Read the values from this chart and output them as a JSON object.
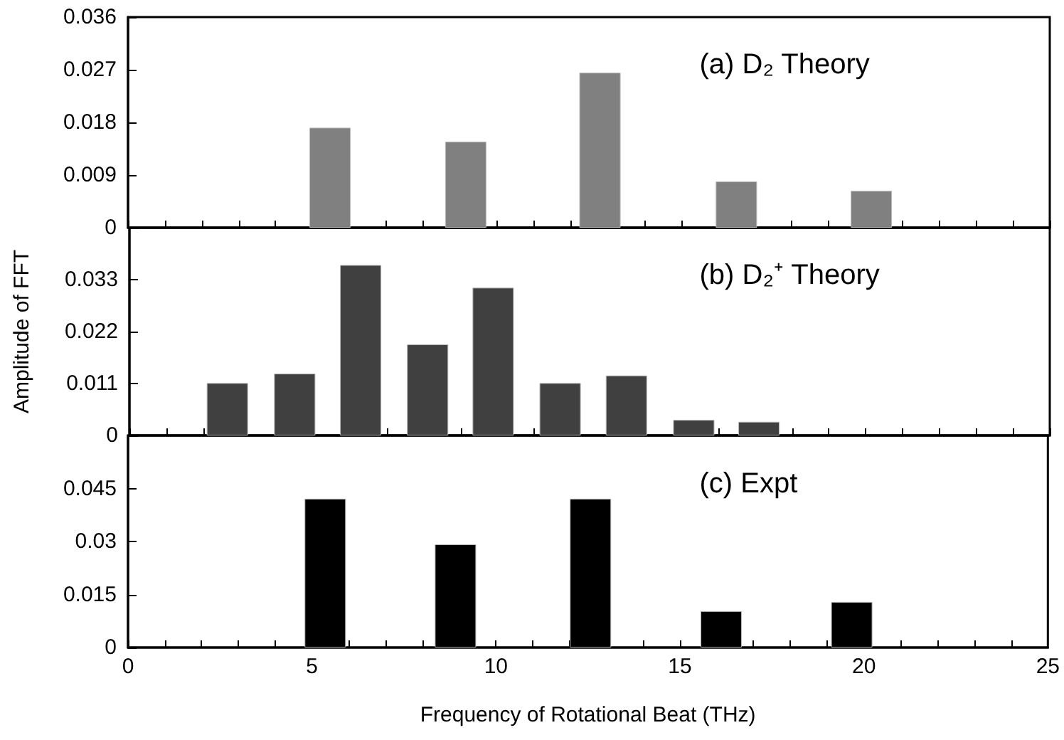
{
  "chart_data": [
    {
      "type": "bar",
      "annotations": [
        "(a) D₂ Theory"
      ],
      "x": [
        5.48,
        9.16,
        12.8,
        16.5,
        20.16
      ],
      "values": [
        0.0171,
        0.0147,
        0.0265,
        0.0079,
        0.0063
      ],
      "color": "#808080",
      "xlim": [
        0,
        25
      ],
      "xticks": [
        0,
        {
          "value": 1,
          "label": null
        },
        {
          "value": 2,
          "label": null
        },
        {
          "value": 3,
          "label": null
        },
        {
          "value": 4,
          "label": null
        },
        5,
        {
          "value": 6,
          "label": null
        },
        {
          "value": 7,
          "label": null
        },
        {
          "value": 8,
          "label": null
        },
        {
          "value": 9,
          "label": null
        },
        10,
        {
          "value": 11,
          "label": null
        },
        {
          "value": 12,
          "label": null
        },
        {
          "value": 13,
          "label": null
        },
        {
          "value": 14,
          "label": null
        },
        15,
        {
          "value": 16,
          "label": null
        },
        {
          "value": 17,
          "label": null
        },
        {
          "value": 18,
          "label": null
        },
        {
          "value": 19,
          "label": null
        },
        20,
        {
          "value": 21,
          "label": null
        },
        {
          "value": 22,
          "label": null
        },
        {
          "value": 23,
          "label": null
        },
        {
          "value": 24,
          "label": null
        },
        25
      ],
      "ylim": [
        0,
        0.036
      ],
      "yticks": [
        0,
        0.009,
        0.018,
        0.027,
        0.036
      ],
      "tick_labels": "y",
      "grid": false
    },
    {
      "type": "bar",
      "ylabel": "Amplitude of FFT",
      "annotations": [
        "(b) D₂⁺ Theory"
      ],
      "x": [
        2.66,
        4.49,
        6.28,
        8.1,
        9.88,
        11.7,
        13.5,
        15.33,
        17.1
      ],
      "values": [
        0.0111,
        0.0131,
        0.0361,
        0.0193,
        0.0313,
        0.0111,
        0.0127,
        0.0033,
        0.0029
      ],
      "color": "#404040",
      "xlim": [
        0,
        25
      ],
      "xticks": [
        0,
        {
          "value": 1,
          "label": null
        },
        {
          "value": 2,
          "label": null
        },
        {
          "value": 3,
          "label": null
        },
        {
          "value": 4,
          "label": null
        },
        5,
        {
          "value": 6,
          "label": null
        },
        {
          "value": 7,
          "label": null
        },
        {
          "value": 8,
          "label": null
        },
        {
          "value": 9,
          "label": null
        },
        10,
        {
          "value": 11,
          "label": null
        },
        {
          "value": 12,
          "label": null
        },
        {
          "value": 13,
          "label": null
        },
        {
          "value": 14,
          "label": null
        },
        15,
        {
          "value": 16,
          "label": null
        },
        {
          "value": 17,
          "label": null
        },
        {
          "value": 18,
          "label": null
        },
        {
          "value": 19,
          "label": null
        },
        20,
        {
          "value": 21,
          "label": null
        },
        {
          "value": 22,
          "label": null
        },
        {
          "value": 23,
          "label": null
        },
        {
          "value": 24,
          "label": null
        },
        25
      ],
      "ylim": [
        0,
        0.044
      ],
      "yticks": [
        0,
        0.011,
        0.022,
        0.033,
        {
          "value": 0.044,
          "label": null
        }
      ],
      "tick_labels": "y",
      "grid": false
    },
    {
      "type": "bar",
      "xlabel": "Frequency of Rotational Beat (THz)",
      "annotations": [
        "(c) Expt"
      ],
      "x": [
        5.36,
        8.9,
        12.57,
        16.12,
        19.67
      ],
      "values": [
        0.0421,
        0.0292,
        0.0421,
        0.0103,
        0.0129
      ],
      "color": "#000000",
      "xlim": [
        0,
        25
      ],
      "xticks": [
        0,
        {
          "value": 1,
          "label": null
        },
        {
          "value": 2,
          "label": null
        },
        {
          "value": 3,
          "label": null
        },
        {
          "value": 4,
          "label": null
        },
        5,
        {
          "value": 6,
          "label": null
        },
        {
          "value": 7,
          "label": null
        },
        {
          "value": 8,
          "label": null
        },
        {
          "value": 9,
          "label": null
        },
        10,
        {
          "value": 11,
          "label": null
        },
        {
          "value": 12,
          "label": null
        },
        {
          "value": 13,
          "label": null
        },
        {
          "value": 14,
          "label": null
        },
        15,
        {
          "value": 16,
          "label": null
        },
        {
          "value": 17,
          "label": null
        },
        {
          "value": 18,
          "label": null
        },
        {
          "value": 19,
          "label": null
        },
        20,
        {
          "value": 21,
          "label": null
        },
        {
          "value": 22,
          "label": null
        },
        {
          "value": 23,
          "label": null
        },
        {
          "value": 24,
          "label": null
        },
        25
      ],
      "ylim": [
        0,
        0.06
      ],
      "yticks": [
        0,
        0.015,
        0.03,
        0.045,
        {
          "value": 0.06,
          "label": null
        }
      ],
      "grid": false
    }
  ]
}
